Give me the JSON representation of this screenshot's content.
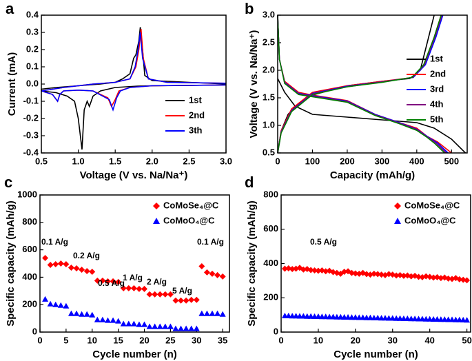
{
  "chart_data": [
    {
      "type": "line",
      "panel_label": "a",
      "x_label": "Voltage (V vs. Na/Na⁺)",
      "y_label": "Current (mA)",
      "xlim": [
        0.5,
        3.0
      ],
      "xticks": [
        0.5,
        {
          "value": 1,
          "label": "1.0"
        },
        1.5,
        {
          "value": 2,
          "label": "2.0"
        },
        2.5,
        {
          "value": 3,
          "label": "3.0"
        }
      ],
      "ylim": [
        -0.4,
        0.4
      ],
      "yticks": [
        -0.4,
        -0.3,
        -0.2,
        -0.1,
        {
          "value": 0,
          "label": "0.0"
        },
        0.1,
        0.2,
        0.3,
        0.4
      ],
      "legend": "lower right",
      "series": [
        {
          "name": "1st",
          "color": "#000000",
          "x": [
            3.0,
            2.5,
            2.0,
            1.8,
            1.5,
            1.3,
            1.2,
            1.15,
            1.12,
            1.08,
            1.05,
            1.0,
            0.95,
            0.85,
            0.7,
            0.5,
            0.5,
            0.7,
            1.0,
            1.3,
            1.5,
            1.6,
            1.7,
            1.75,
            1.78,
            1.82,
            1.84,
            1.87,
            1.9,
            2.0,
            2.5,
            3.0
          ],
          "values": [
            -0.005,
            -0.008,
            -0.01,
            -0.012,
            -0.02,
            -0.04,
            -0.07,
            -0.13,
            -0.1,
            -0.15,
            -0.38,
            -0.2,
            -0.1,
            -0.07,
            -0.05,
            -0.04,
            -0.03,
            -0.02,
            -0.01,
            0.0,
            0.01,
            0.03,
            0.06,
            0.15,
            0.17,
            0.25,
            0.33,
            0.2,
            0.05,
            0.02,
            0.01,
            0.0
          ]
        },
        {
          "name": "2nd",
          "color": "#ff0000",
          "x": [
            3.0,
            2.0,
            1.7,
            1.55,
            1.5,
            1.45,
            1.4,
            1.2,
            1.0,
            0.8,
            0.75,
            0.72,
            0.65,
            0.5,
            0.5,
            0.8,
            1.2,
            1.5,
            1.7,
            1.78,
            1.82,
            1.85,
            1.88,
            1.95,
            2.2,
            3.0
          ],
          "values": [
            -0.005,
            -0.01,
            -0.02,
            -0.04,
            -0.09,
            -0.13,
            -0.08,
            -0.04,
            -0.035,
            -0.04,
            -0.06,
            -0.1,
            -0.06,
            -0.04,
            -0.04,
            -0.02,
            0.0,
            0.01,
            0.03,
            0.1,
            0.2,
            0.32,
            0.15,
            0.03,
            0.01,
            0.005
          ]
        },
        {
          "name": "3th",
          "color": "#0000ff",
          "x": [
            3.0,
            2.0,
            1.7,
            1.57,
            1.52,
            1.47,
            1.42,
            1.2,
            1.0,
            0.8,
            0.75,
            0.72,
            0.65,
            0.5,
            0.5,
            0.8,
            1.2,
            1.5,
            1.7,
            1.77,
            1.81,
            1.84,
            1.87,
            1.95,
            2.2,
            3.0
          ],
          "values": [
            -0.005,
            -0.01,
            -0.02,
            -0.04,
            -0.08,
            -0.15,
            -0.09,
            -0.04,
            -0.035,
            -0.04,
            -0.06,
            -0.1,
            -0.06,
            -0.04,
            -0.04,
            -0.02,
            0.0,
            0.01,
            0.03,
            0.1,
            0.2,
            0.3,
            0.15,
            0.03,
            0.01,
            0.005
          ]
        }
      ]
    },
    {
      "type": "line",
      "panel_label": "b",
      "x_label": "Capacity (mAh/g)",
      "y_label": "Voltage (V vs. Na/Na⁺)",
      "xlim": [
        0,
        545
      ],
      "xticks": [
        0,
        100,
        200,
        300,
        400,
        500
      ],
      "ylim": [
        0.5,
        3.0
      ],
      "yticks": [
        0.5,
        {
          "value": 1,
          "label": "1.0"
        },
        1.5,
        {
          "value": 2,
          "label": "2.0"
        },
        2.5,
        {
          "value": 3,
          "label": "3.0"
        }
      ],
      "legend": "center right",
      "series": [
        {
          "name": "1st",
          "color": "#000000",
          "x": [
            0,
            20,
            50,
            100,
            200,
            300,
            400,
            450,
            500,
            540,
            null,
            0,
            10,
            30,
            60,
            100,
            200,
            300,
            380,
            410,
            430,
            450
          ],
          "values": [
            1.85,
            1.6,
            1.35,
            1.2,
            1.15,
            1.1,
            1.05,
            0.95,
            0.75,
            0.5,
            null,
            0.5,
            0.9,
            1.2,
            1.4,
            1.55,
            1.72,
            1.8,
            1.85,
            2.0,
            2.5,
            3.0
          ]
        },
        {
          "name": "2nd",
          "color": "#ff0000",
          "x": [
            0,
            5,
            20,
            60,
            100,
            200,
            280,
            350,
            400,
            430,
            460,
            500,
            null,
            0,
            10,
            40,
            100,
            200,
            300,
            390,
            420,
            450,
            470
          ],
          "values": [
            3.0,
            2.2,
            1.8,
            1.6,
            1.55,
            1.45,
            1.2,
            1.05,
            0.95,
            0.8,
            0.7,
            0.5,
            null,
            0.5,
            0.9,
            1.3,
            1.6,
            1.72,
            1.8,
            1.87,
            2.1,
            2.6,
            3.0
          ]
        },
        {
          "name": "3rd",
          "color": "#0000ff",
          "x": [
            0,
            5,
            20,
            60,
            100,
            200,
            280,
            350,
            400,
            430,
            460,
            490,
            null,
            0,
            10,
            40,
            100,
            200,
            300,
            390,
            425,
            455,
            475
          ],
          "values": [
            3.0,
            2.2,
            1.78,
            1.58,
            1.54,
            1.44,
            1.2,
            1.05,
            0.93,
            0.8,
            0.68,
            0.5,
            null,
            0.5,
            0.88,
            1.27,
            1.58,
            1.71,
            1.79,
            1.87,
            2.1,
            2.6,
            3.0
          ]
        },
        {
          "name": "4th",
          "color": "#800080",
          "x": [
            0,
            5,
            20,
            60,
            100,
            200,
            280,
            350,
            400,
            430,
            455,
            485,
            null,
            0,
            10,
            40,
            100,
            200,
            300,
            388,
            422,
            452,
            472
          ],
          "values": [
            3.0,
            2.2,
            1.77,
            1.57,
            1.53,
            1.43,
            1.19,
            1.04,
            0.92,
            0.79,
            0.68,
            0.5,
            null,
            0.5,
            0.87,
            1.26,
            1.57,
            1.7,
            1.79,
            1.87,
            2.1,
            2.6,
            3.0
          ]
        },
        {
          "name": "5th",
          "color": "#008000",
          "x": [
            0,
            5,
            20,
            60,
            100,
            200,
            280,
            350,
            400,
            428,
            452,
            480,
            null,
            0,
            10,
            40,
            100,
            200,
            300,
            386,
            420,
            450,
            470
          ],
          "values": [
            3.0,
            2.2,
            1.76,
            1.56,
            1.52,
            1.42,
            1.18,
            1.03,
            0.91,
            0.79,
            0.67,
            0.5,
            null,
            0.5,
            0.86,
            1.25,
            1.56,
            1.7,
            1.78,
            1.87,
            2.1,
            2.6,
            3.0
          ]
        }
      ]
    },
    {
      "type": "scatter",
      "panel_label": "c",
      "x_label": "Cycle number (n)",
      "y_label": "Specific capacity (mAh/g)",
      "xlim": [
        0,
        36.3
      ],
      "xticks": [
        0,
        5,
        10,
        15,
        20,
        25,
        30,
        35
      ],
      "ylim": [
        0,
        1000
      ],
      "yticks": [
        0,
        200,
        400,
        600,
        800,
        1000
      ],
      "legend": "upper right",
      "annotations": [
        "0.1 A/g",
        "0.2 A/g",
        "0.5 A/g",
        "1 A/g",
        "2 A/g",
        "5 A/g",
        "0.1 A/g"
      ],
      "x": [
        1,
        2,
        3,
        4,
        5,
        6,
        7,
        8,
        9,
        10,
        11,
        12,
        13,
        14,
        15,
        16,
        17,
        18,
        19,
        20,
        21,
        22,
        23,
        24,
        25,
        26,
        27,
        28,
        29,
        30,
        31,
        32,
        33,
        34,
        35
      ],
      "series": [
        {
          "name": "CoMoSe₄@C",
          "color": "#ff0000",
          "marker": "diamond",
          "values": [
            540,
            490,
            495,
            500,
            495,
            470,
            465,
            455,
            445,
            440,
            375,
            375,
            370,
            370,
            365,
            320,
            320,
            320,
            315,
            315,
            275,
            275,
            275,
            275,
            275,
            230,
            230,
            230,
            235,
            235,
            480,
            435,
            425,
            415,
            405
          ]
        },
        {
          "name": "CoMoO₄@C",
          "color": "#0000ff",
          "marker": "triangle",
          "values": [
            240,
            205,
            200,
            195,
            190,
            135,
            135,
            130,
            130,
            125,
            90,
            90,
            85,
            85,
            80,
            60,
            60,
            60,
            55,
            55,
            40,
            40,
            40,
            40,
            40,
            25,
            25,
            25,
            25,
            25,
            135,
            135,
            135,
            135,
            130
          ]
        }
      ]
    },
    {
      "type": "scatter",
      "panel_label": "d",
      "x_label": "Cycle number (n)",
      "y_label": "Specific capacity (mAh/g)",
      "xlim": [
        0,
        51
      ],
      "xticks": [
        0,
        10,
        20,
        30,
        40,
        50
      ],
      "ylim": [
        0,
        800
      ],
      "yticks": [
        0,
        200,
        400,
        600,
        800
      ],
      "legend": "upper right",
      "annotations": [
        "0.5 A/g"
      ],
      "x": [
        1,
        2,
        3,
        4,
        5,
        6,
        7,
        8,
        9,
        10,
        11,
        12,
        13,
        14,
        15,
        16,
        17,
        18,
        19,
        20,
        21,
        22,
        23,
        24,
        25,
        26,
        27,
        28,
        29,
        30,
        31,
        32,
        33,
        34,
        35,
        36,
        37,
        38,
        39,
        40,
        41,
        42,
        43,
        44,
        45,
        46,
        47,
        48,
        49,
        50
      ],
      "series": [
        {
          "name": "CoMoSe₄@C",
          "color": "#ff0000",
          "marker": "diamond",
          "values": [
            370,
            372,
            368,
            370,
            375,
            365,
            368,
            362,
            360,
            358,
            360,
            355,
            358,
            350,
            345,
            340,
            352,
            355,
            345,
            342,
            340,
            345,
            338,
            335,
            340,
            338,
            335,
            332,
            338,
            335,
            330,
            332,
            328,
            330,
            325,
            328,
            322,
            320,
            325,
            322,
            318,
            320,
            315,
            318,
            312,
            310,
            315,
            308,
            305,
            302
          ]
        },
        {
          "name": "CoMoO₄@C",
          "color": "#0000ff",
          "marker": "triangle",
          "values": [
            95,
            95,
            94,
            94,
            93,
            93,
            92,
            92,
            91,
            91,
            90,
            90,
            89,
            89,
            88,
            88,
            87,
            87,
            86,
            86,
            85,
            85,
            84,
            84,
            83,
            83,
            82,
            82,
            81,
            81,
            80,
            80,
            79,
            79,
            78,
            78,
            77,
            77,
            76,
            76,
            75,
            75,
            74,
            74,
            73,
            73,
            72,
            72,
            71,
            70
          ]
        }
      ]
    }
  ]
}
